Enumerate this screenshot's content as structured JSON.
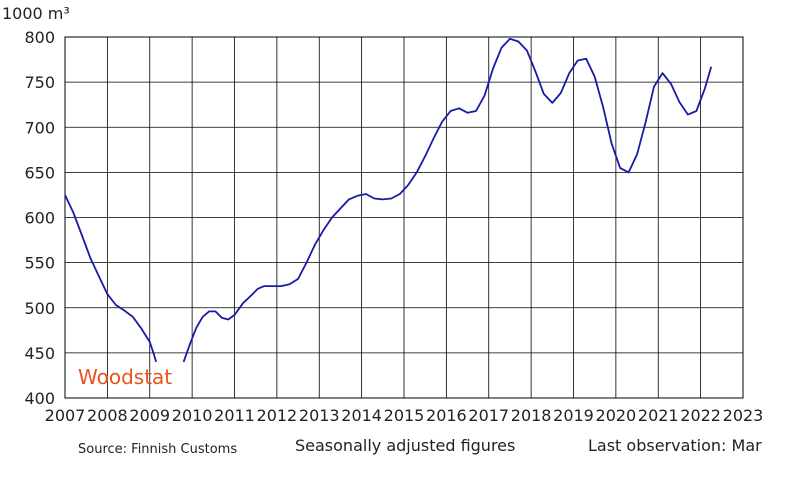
{
  "chart_data": {
    "type": "line",
    "ylabel": "1000 m³",
    "xlim": [
      2007,
      2023
    ],
    "ylim": [
      400,
      800
    ],
    "x_ticks": [
      "2007",
      "2008",
      "2009",
      "2010",
      "2011",
      "2012",
      "2013",
      "2014",
      "2015",
      "2016",
      "2017",
      "2018",
      "2019",
      "2020",
      "2021",
      "2022",
      "2023"
    ],
    "y_ticks": [
      "400",
      "450",
      "500",
      "550",
      "600",
      "650",
      "700",
      "750",
      "800"
    ],
    "grid": true,
    "line_color": "#1a1aa8",
    "series": [
      {
        "segments": [
          [
            [
              2007.0,
              625
            ],
            [
              2007.2,
              605
            ],
            [
              2007.4,
              580
            ],
            [
              2007.6,
              555
            ],
            [
              2007.8,
              535
            ],
            [
              2008.0,
              515
            ],
            [
              2008.2,
              503
            ],
            [
              2008.4,
              497
            ],
            [
              2008.6,
              490
            ],
            [
              2008.8,
              477
            ],
            [
              2009.0,
              462
            ],
            [
              2009.1,
              448
            ],
            [
              2009.15,
              440
            ]
          ],
          [
            [
              2009.8,
              440
            ],
            [
              2009.95,
              460
            ],
            [
              2010.1,
              478
            ],
            [
              2010.25,
              490
            ],
            [
              2010.4,
              496
            ],
            [
              2010.55,
              496
            ],
            [
              2010.7,
              489
            ],
            [
              2010.85,
              487
            ],
            [
              2011.0,
              492
            ],
            [
              2011.2,
              505
            ],
            [
              2011.4,
              514
            ],
            [
              2011.55,
              521
            ],
            [
              2011.7,
              524
            ],
            [
              2011.9,
              524
            ],
            [
              2012.1,
              524
            ],
            [
              2012.3,
              526
            ],
            [
              2012.5,
              532
            ],
            [
              2012.7,
              550
            ],
            [
              2012.9,
              570
            ],
            [
              2013.1,
              586
            ],
            [
              2013.3,
              600
            ],
            [
              2013.5,
              610
            ],
            [
              2013.7,
              620
            ],
            [
              2013.9,
              624
            ],
            [
              2014.1,
              626
            ],
            [
              2014.3,
              621
            ],
            [
              2014.5,
              620
            ],
            [
              2014.7,
              621
            ],
            [
              2014.9,
              626
            ],
            [
              2015.1,
              636
            ],
            [
              2015.3,
              650
            ],
            [
              2015.5,
              668
            ],
            [
              2015.7,
              688
            ],
            [
              2015.9,
              706
            ],
            [
              2016.1,
              718
            ],
            [
              2016.3,
              721
            ],
            [
              2016.5,
              716
            ],
            [
              2016.7,
              718
            ],
            [
              2016.9,
              735
            ],
            [
              2017.1,
              765
            ],
            [
              2017.3,
              788
            ],
            [
              2017.5,
              798
            ],
            [
              2017.7,
              795
            ],
            [
              2017.9,
              785
            ],
            [
              2018.1,
              762
            ],
            [
              2018.3,
              737
            ],
            [
              2018.5,
              727
            ],
            [
              2018.7,
              738
            ],
            [
              2018.9,
              760
            ],
            [
              2019.1,
              774
            ],
            [
              2019.3,
              776
            ],
            [
              2019.5,
              756
            ],
            [
              2019.7,
              722
            ],
            [
              2019.9,
              682
            ],
            [
              2020.1,
              655
            ],
            [
              2020.3,
              650
            ],
            [
              2020.5,
              670
            ],
            [
              2020.7,
              705
            ],
            [
              2020.9,
              745
            ],
            [
              2021.1,
              760
            ],
            [
              2021.3,
              748
            ],
            [
              2021.5,
              728
            ],
            [
              2021.7,
              714
            ],
            [
              2021.9,
              718
            ],
            [
              2022.1,
              743
            ],
            [
              2022.25,
              767
            ]
          ]
        ]
      }
    ]
  },
  "source_note": "Source: Finnish Customs",
  "adjust_note": "Seasonally adjusted figures",
  "last_obs_note": "Last observation: Mar",
  "brand": "Woodstat",
  "brand_color": "#e8541e"
}
